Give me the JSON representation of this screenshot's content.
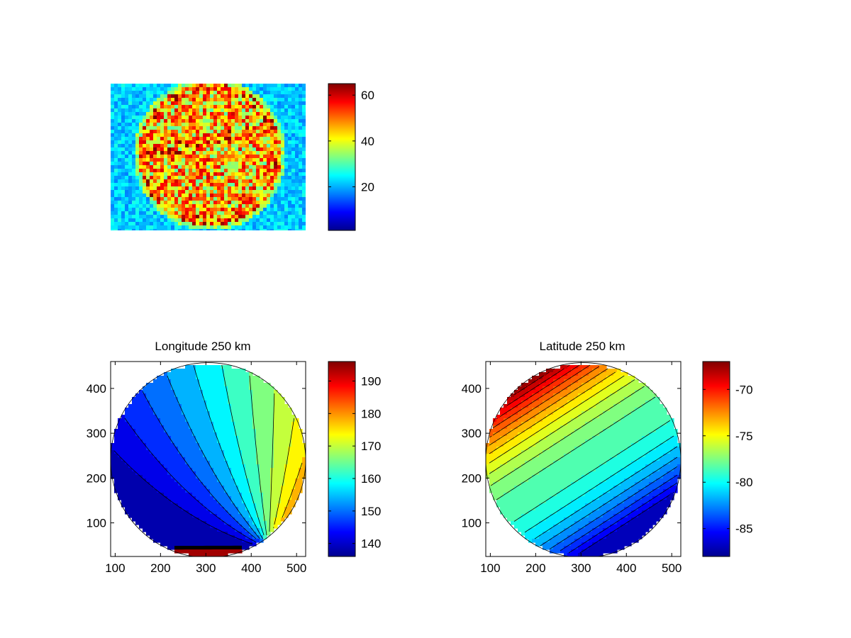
{
  "colormap": [
    "#00008f",
    "#0000ff",
    "#0080ff",
    "#00ffff",
    "#80ff80",
    "#ffff00",
    "#ff8000",
    "#ff0000",
    "#800000"
  ],
  "chart_data": [
    {
      "type": "heatmap",
      "title": "",
      "xlabel": "",
      "ylabel": "",
      "axis_visible": false,
      "grid": false,
      "description_values": {
        "background_level": 22,
        "disk_level": 45,
        "band_level": 58
      },
      "colorbar": {
        "range": [
          1,
          65
        ],
        "ticks": [
          20,
          40,
          60
        ],
        "tick_labels": [
          "20",
          "40",
          "60"
        ]
      }
    },
    {
      "type": "heatmap",
      "title": "Longitude 250 km",
      "xlabel": "",
      "ylabel": "",
      "grid": false,
      "xlim": [
        90,
        520
      ],
      "ylim": [
        25,
        460
      ],
      "x_ticks": [
        100,
        200,
        300,
        400,
        500
      ],
      "x_tick_labels": [
        "100",
        "200",
        "300",
        "400",
        "500"
      ],
      "y_ticks": [
        100,
        200,
        300,
        400
      ],
      "y_tick_labels": [
        "100",
        "200",
        "300",
        "400"
      ],
      "disk": {
        "center": [
          305,
          240
        ],
        "radius": 215
      },
      "contour_levels": [
        140,
        144,
        148,
        152,
        156,
        160,
        164,
        168,
        172,
        176,
        180,
        184,
        188,
        192
      ],
      "value_range": [
        136,
        196
      ],
      "colorbar": {
        "range": [
          136,
          196
        ],
        "ticks": [
          140,
          150,
          160,
          170,
          180,
          190
        ],
        "tick_labels": [
          "140",
          "150",
          "160",
          "170",
          "180",
          "190"
        ]
      }
    },
    {
      "type": "heatmap",
      "title": "Latitude 250 km",
      "xlabel": "",
      "ylabel": "",
      "grid": false,
      "xlim": [
        90,
        520
      ],
      "ylim": [
        25,
        460
      ],
      "x_ticks": [
        100,
        200,
        300,
        400,
        500
      ],
      "x_tick_labels": [
        "100",
        "200",
        "300",
        "400",
        "500"
      ],
      "y_ticks": [
        100,
        200,
        300,
        400
      ],
      "y_tick_labels": [
        "100",
        "200",
        "300",
        "400"
      ],
      "disk": {
        "center": [
          305,
          240
        ],
        "radius": 215
      },
      "contour_levels": [
        -86,
        -85,
        -84,
        -83,
        -82,
        -81,
        -80,
        -79,
        -78,
        -77,
        -76,
        -75,
        -74,
        -73,
        -72,
        -71,
        -70,
        -69,
        -68
      ],
      "value_range": [
        -88,
        -67
      ],
      "colorbar": {
        "range": [
          -88,
          -67
        ],
        "ticks": [
          -85,
          -80,
          -75,
          -70
        ],
        "tick_labels": [
          "-85",
          "-80",
          "-75",
          "-70"
        ]
      }
    }
  ]
}
